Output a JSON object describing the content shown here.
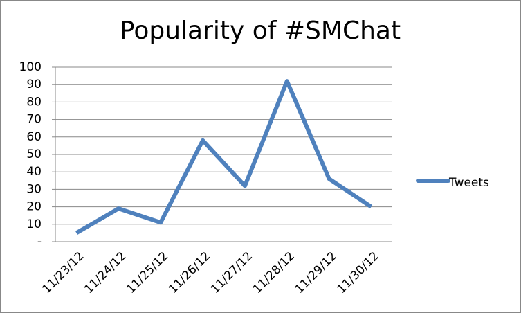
{
  "chart_data": {
    "type": "line",
    "title": "Popularity of #SMChat",
    "categories": [
      "11/23/12",
      "11/24/12",
      "11/25/12",
      "11/26/12",
      "11/27/12",
      "11/28/12",
      "11/29/12",
      "11/30/12"
    ],
    "series": [
      {
        "name": "Tweets",
        "color": "#4f81bd",
        "values": [
          5,
          19,
          11,
          58,
          32,
          92,
          36,
          20
        ]
      }
    ],
    "ylim": [
      0,
      100
    ],
    "yticks": [
      {
        "value": 0,
        "label": "-"
      },
      10,
      20,
      30,
      40,
      50,
      60,
      70,
      80,
      90,
      100
    ],
    "grid": true,
    "legend": "right"
  }
}
